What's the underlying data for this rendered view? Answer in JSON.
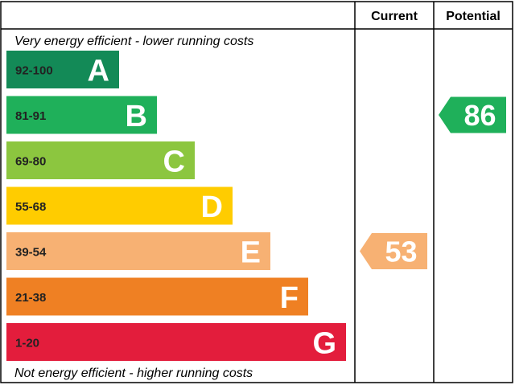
{
  "chart_data": {
    "type": "bar",
    "column_headers": {
      "current": "Current",
      "potential": "Potential"
    },
    "top_caption": "Very energy efficient - lower running costs",
    "bottom_caption": "Not energy efficient - higher running costs",
    "bands": [
      {
        "range": "92-100",
        "letter": "A",
        "color": "#138a57"
      },
      {
        "range": "81-91",
        "letter": "B",
        "color": "#1fb05a"
      },
      {
        "range": "69-80",
        "letter": "C",
        "color": "#8cc63f"
      },
      {
        "range": "55-68",
        "letter": "D",
        "color": "#ffcc00"
      },
      {
        "range": "39-54",
        "letter": "E",
        "color": "#f7b173"
      },
      {
        "range": "21-38",
        "letter": "F",
        "color": "#ef8023"
      },
      {
        "range": "1-20",
        "letter": "G",
        "color": "#e31d3c"
      }
    ],
    "current": {
      "value": 53,
      "band": "E",
      "color": "#f7b173"
    },
    "potential": {
      "value": 86,
      "band": "B",
      "color": "#1fb05a"
    }
  }
}
